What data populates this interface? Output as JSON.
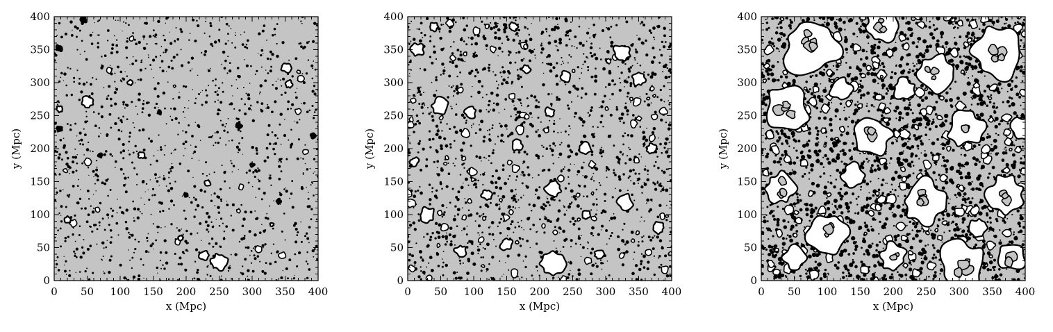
{
  "chart_data": [
    {
      "type": "heatmap",
      "title": "",
      "xlabel": "x (Mpc)",
      "ylabel": "y (Mpc)",
      "xlim": [
        0,
        400
      ],
      "ylim": [
        0,
        400
      ],
      "xticks": [
        0,
        50,
        100,
        150,
        200,
        250,
        300,
        350,
        400
      ],
      "yticks": [
        0,
        50,
        100,
        150,
        200,
        250,
        300,
        350,
        400
      ],
      "grid": false,
      "map": "ionization field, grey = neutral, white = ionized, black = region boundaries",
      "ionized_fraction": 0.03,
      "bubbles": [
        {
          "x": 250,
          "y": 28,
          "r": 13
        },
        {
          "x": 228,
          "y": 38,
          "r": 8
        },
        {
          "x": 50,
          "y": 270,
          "r": 9
        },
        {
          "x": 8,
          "y": 260,
          "r": 5
        },
        {
          "x": 352,
          "y": 322,
          "r": 8
        },
        {
          "x": 355,
          "y": 298,
          "r": 6
        },
        {
          "x": 132,
          "y": 190,
          "r": 5
        },
        {
          "x": 232,
          "y": 148,
          "r": 5
        },
        {
          "x": 115,
          "y": 300,
          "r": 4
        },
        {
          "x": 20,
          "y": 92,
          "r": 6
        },
        {
          "x": 192,
          "y": 65,
          "r": 4
        },
        {
          "x": 330,
          "y": 85,
          "r": 3
        }
      ],
      "blobs": [
        {
          "x": 8,
          "y": 352,
          "r": 7
        },
        {
          "x": 45,
          "y": 395,
          "r": 6
        },
        {
          "x": 392,
          "y": 220,
          "r": 6
        },
        {
          "x": 8,
          "y": 230,
          "r": 6
        },
        {
          "x": 340,
          "y": 120,
          "r": 5
        },
        {
          "x": 280,
          "y": 235,
          "r": 6
        },
        {
          "x": 160,
          "y": 255,
          "r": 5
        },
        {
          "x": 70,
          "y": 190,
          "r": 5
        },
        {
          "x": 300,
          "y": 175,
          "r": 5
        },
        {
          "x": 200,
          "y": 130,
          "r": 5
        }
      ]
    },
    {
      "type": "heatmap",
      "title": "",
      "xlabel": "x (Mpc)",
      "ylabel": "y (Mpc)",
      "xlim": [
        0,
        400
      ],
      "ylim": [
        0,
        400
      ],
      "xticks": [
        0,
        50,
        100,
        150,
        200,
        250,
        300,
        350,
        400
      ],
      "yticks": [
        0,
        50,
        100,
        150,
        200,
        250,
        300,
        350,
        400
      ],
      "grid": false,
      "map": "ionization field, grey = neutral, white = ionized, black = region boundaries",
      "ionized_fraction": 0.15,
      "bubbles": [
        {
          "x": 220,
          "y": 25,
          "r": 20
        },
        {
          "x": 50,
          "y": 265,
          "r": 14
        },
        {
          "x": 325,
          "y": 345,
          "r": 14
        },
        {
          "x": 15,
          "y": 350,
          "r": 10
        },
        {
          "x": 220,
          "y": 140,
          "r": 13
        },
        {
          "x": 30,
          "y": 100,
          "r": 12
        },
        {
          "x": 350,
          "y": 305,
          "r": 10
        },
        {
          "x": 330,
          "y": 120,
          "r": 12
        },
        {
          "x": 270,
          "y": 200,
          "r": 10
        },
        {
          "x": 150,
          "y": 55,
          "r": 10
        },
        {
          "x": 80,
          "y": 45,
          "r": 9
        },
        {
          "x": 240,
          "y": 310,
          "r": 9
        },
        {
          "x": 95,
          "y": 255,
          "r": 9
        },
        {
          "x": 165,
          "y": 205,
          "r": 9
        },
        {
          "x": 380,
          "y": 80,
          "r": 9
        },
        {
          "x": 215,
          "y": 255,
          "r": 8
        },
        {
          "x": 40,
          "y": 385,
          "r": 7
        },
        {
          "x": 160,
          "y": 385,
          "r": 7
        },
        {
          "x": 370,
          "y": 200,
          "r": 8
        },
        {
          "x": 290,
          "y": 40,
          "r": 8
        },
        {
          "x": 120,
          "y": 130,
          "r": 8
        },
        {
          "x": 10,
          "y": 180,
          "r": 7
        },
        {
          "x": 270,
          "y": 100,
          "r": 7
        },
        {
          "x": 180,
          "y": 320,
          "r": 7
        }
      ],
      "blobs": []
    },
    {
      "type": "heatmap",
      "title": "",
      "xlabel": "x (Mpc)",
      "ylabel": "y (Mpc)",
      "xlim": [
        0,
        400
      ],
      "ylim": [
        0,
        400
      ],
      "xticks": [
        0,
        50,
        100,
        150,
        200,
        250,
        300,
        350,
        400
      ],
      "yticks": [
        0,
        50,
        100,
        150,
        200,
        250,
        300,
        350,
        400
      ],
      "grid": false,
      "map": "ionization field, grey = neutral, white = ionized, black = region boundaries",
      "ionized_fraction": 0.45,
      "bubbles": [
        {
          "x": 75,
          "y": 355,
          "r": 45
        },
        {
          "x": 360,
          "y": 345,
          "r": 40
        },
        {
          "x": 40,
          "y": 260,
          "r": 35
        },
        {
          "x": 305,
          "y": 20,
          "r": 40
        },
        {
          "x": 245,
          "y": 120,
          "r": 35
        },
        {
          "x": 170,
          "y": 220,
          "r": 30
        },
        {
          "x": 265,
          "y": 315,
          "r": 30
        },
        {
          "x": 180,
          "y": 385,
          "r": 25
        },
        {
          "x": 100,
          "y": 70,
          "r": 30
        },
        {
          "x": 30,
          "y": 140,
          "r": 25
        },
        {
          "x": 370,
          "y": 130,
          "r": 30
        },
        {
          "x": 310,
          "y": 230,
          "r": 28
        },
        {
          "x": 380,
          "y": 35,
          "r": 22
        },
        {
          "x": 200,
          "y": 35,
          "r": 22
        },
        {
          "x": 215,
          "y": 290,
          "r": 18
        },
        {
          "x": 120,
          "y": 290,
          "r": 18
        },
        {
          "x": 140,
          "y": 160,
          "r": 18
        },
        {
          "x": 330,
          "y": 80,
          "r": 15
        },
        {
          "x": 50,
          "y": 35,
          "r": 18
        },
        {
          "x": 395,
          "y": 230,
          "r": 18
        }
      ],
      "blobs": []
    }
  ]
}
